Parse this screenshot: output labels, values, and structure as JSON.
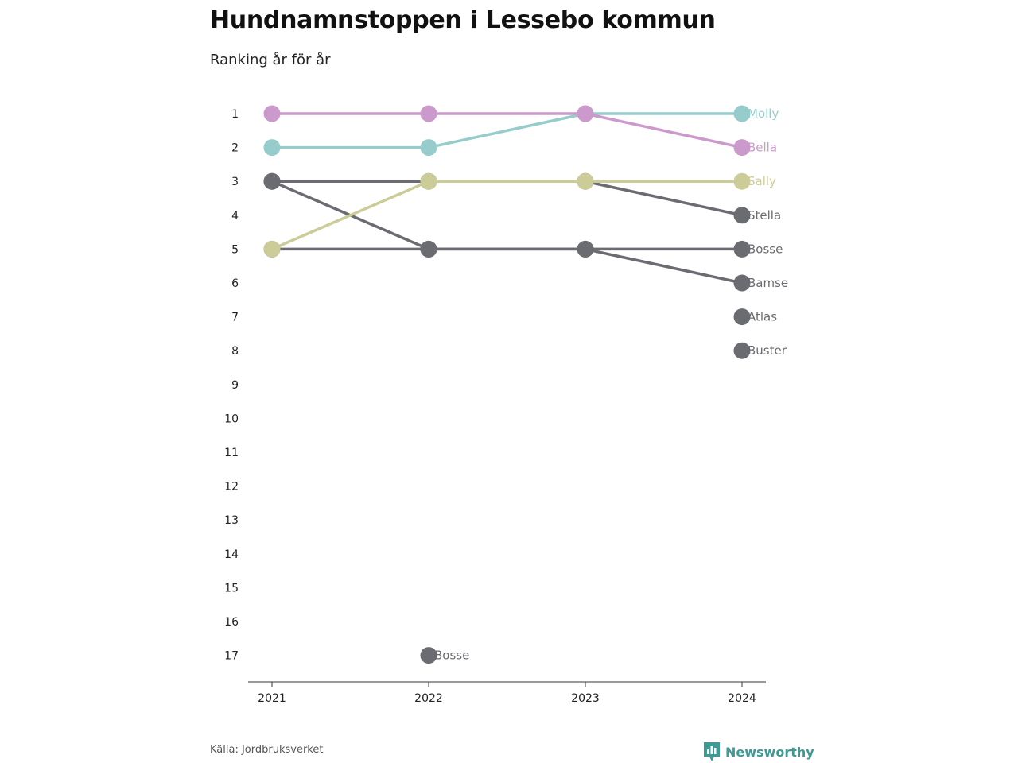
{
  "title": "Hundnamnstoppen i Lessebo kommun",
  "subtitle": "Ranking år för år",
  "source": "Källa: Jordbruksverket",
  "brand": "Newsworthy",
  "chart_data": {
    "type": "line",
    "x": [
      "2021",
      "2022",
      "2023",
      "2024"
    ],
    "y_ticks": [
      1,
      2,
      3,
      4,
      5,
      6,
      7,
      8,
      9,
      10,
      11,
      12,
      13,
      14,
      15,
      16,
      17
    ],
    "ylim": [
      1,
      17
    ],
    "y_reversed": true,
    "series": [
      {
        "name": "Molly",
        "color": "#96cccb",
        "ranks": [
          2,
          2,
          1,
          1
        ]
      },
      {
        "name": "Bella",
        "color": "#cc99cc",
        "ranks": [
          1,
          1,
          1,
          2
        ]
      },
      {
        "name": "Sally",
        "color": "#cccc99",
        "ranks": [
          5,
          3,
          3,
          3
        ]
      },
      {
        "name": "Stella",
        "color": "#6b6b72",
        "ranks": [
          3,
          3,
          3,
          4
        ]
      },
      {
        "name": "Bosse",
        "color": "#6b6b72",
        "ranks": [
          3,
          5,
          5,
          5
        ]
      },
      {
        "name": "Bamse",
        "color": "#6b6b72",
        "ranks": [
          5,
          5,
          5,
          6
        ]
      },
      {
        "name": "Atlas",
        "color": "#6b6b72",
        "ranks": [
          null,
          null,
          null,
          7
        ]
      },
      {
        "name": "Buster",
        "color": "#6b6b72",
        "ranks": [
          null,
          null,
          null,
          8
        ]
      },
      {
        "name": "Bosse",
        "color": "#6b6b72",
        "ranks": [
          null,
          17,
          null,
          null
        ]
      }
    ]
  }
}
